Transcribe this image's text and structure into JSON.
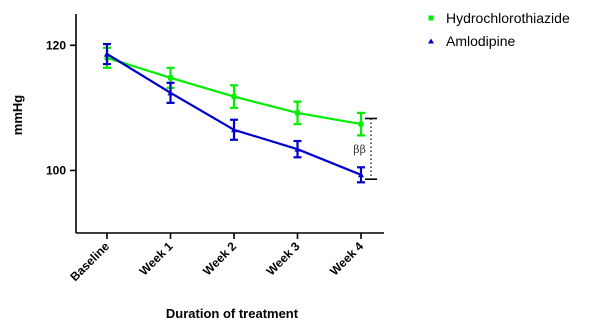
{
  "chart_data": {
    "type": "line",
    "title": "",
    "xlabel": "Duration of treatment",
    "ylabel": "mmHg",
    "categories": [
      "Baseline",
      "Week 1",
      "Week 2",
      "Week 3",
      "Week 4"
    ],
    "ylim": [
      90,
      125
    ],
    "yticks": [
      100,
      120
    ],
    "grid": false,
    "legend_position": "top-right, outside plot",
    "series": [
      {
        "name": "Hydrochlorothiazide",
        "marker": "square",
        "color": "#00ee00",
        "values": [
          118.0,
          114.8,
          111.8,
          109.2,
          107.4
        ],
        "error": [
          1.6,
          1.6,
          1.8,
          1.8,
          1.8
        ]
      },
      {
        "name": "Amlodipine",
        "marker": "triangle",
        "color": "#0000cc",
        "values": [
          118.6,
          112.4,
          106.5,
          103.4,
          99.3
        ],
        "error": [
          1.6,
          1.6,
          1.6,
          1.3,
          1.2
        ]
      }
    ],
    "annotation": {
      "text": "ββ",
      "category": "Week 4",
      "between_values": [
        108.3,
        98.6
      ]
    }
  }
}
